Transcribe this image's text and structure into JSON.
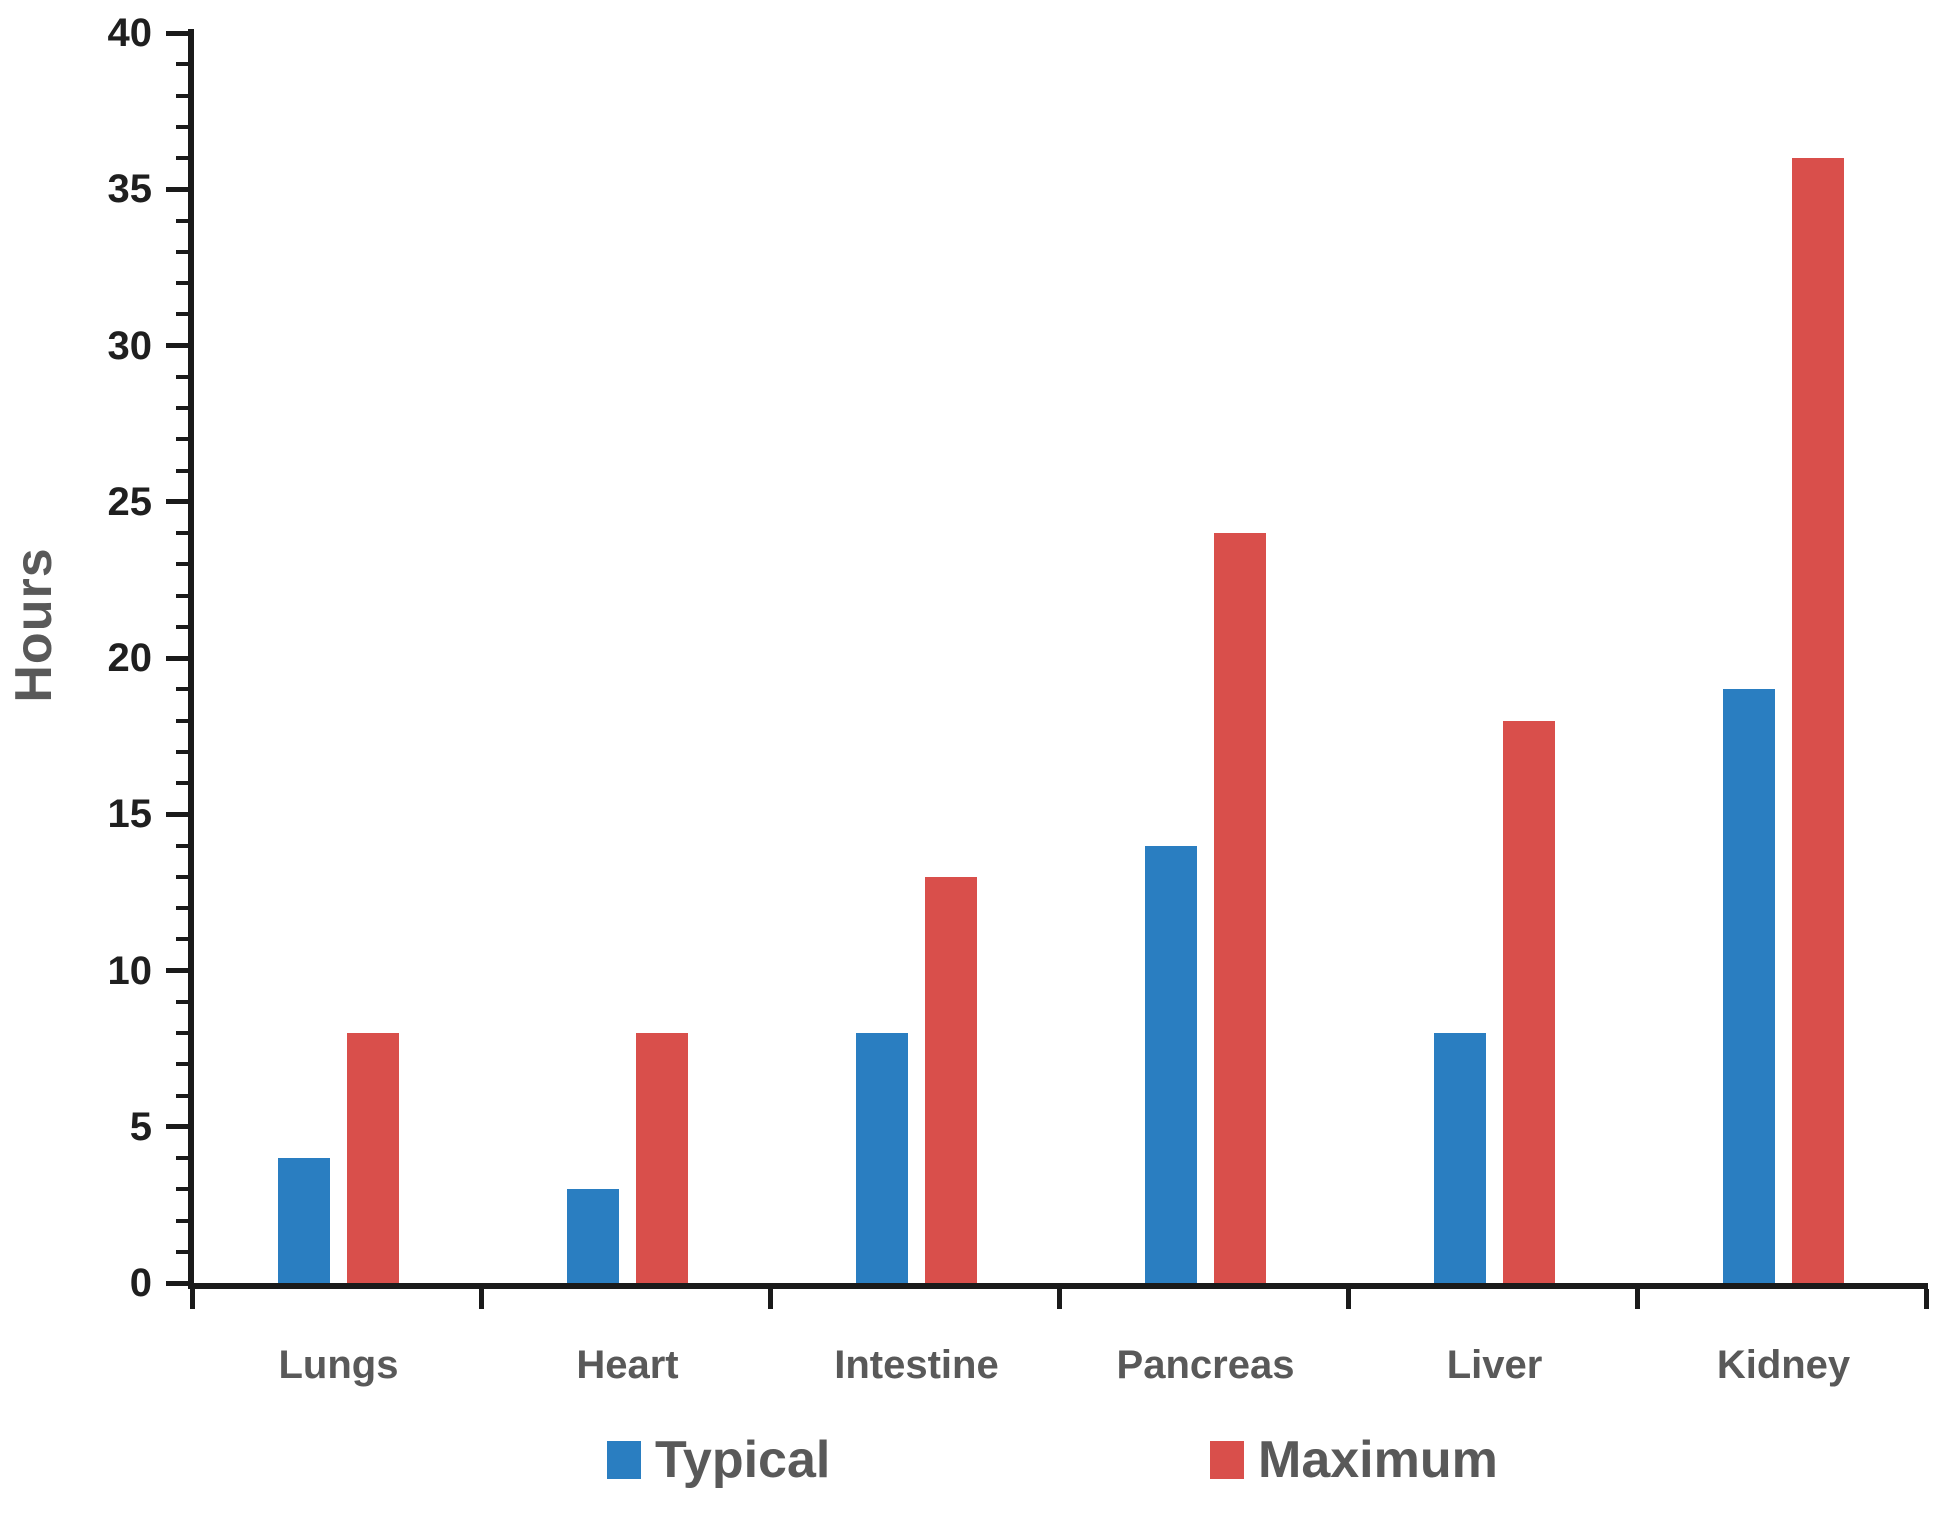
{
  "chart_data": {
    "type": "bar",
    "title": "",
    "xlabel": "",
    "ylabel": "Hours",
    "categories": [
      "Lungs",
      "Heart",
      "Intestine",
      "Pancreas",
      "Liver",
      "Kidney"
    ],
    "series": [
      {
        "name": "Typical",
        "color": "#2A7EC1",
        "values": [
          4,
          3,
          8,
          14,
          8,
          19
        ]
      },
      {
        "name": "Maximum",
        "color": "#D94F4B",
        "values": [
          8,
          8,
          13,
          24,
          18,
          36
        ]
      }
    ],
    "ylim": [
      0,
      40
    ],
    "y_major_tick": 5,
    "y_minor_tick": 1,
    "y_tick_labels": [
      "0",
      "5",
      "10",
      "15",
      "20",
      "25",
      "30",
      "35",
      "40"
    ],
    "grid": false,
    "legend_position": "bottom"
  },
  "colors": {
    "axis": "#1a1a1a",
    "y_tick_label": "#1f1f1f",
    "category_label": "#595959",
    "legend_label": "#595959",
    "background": "#ffffff"
  }
}
